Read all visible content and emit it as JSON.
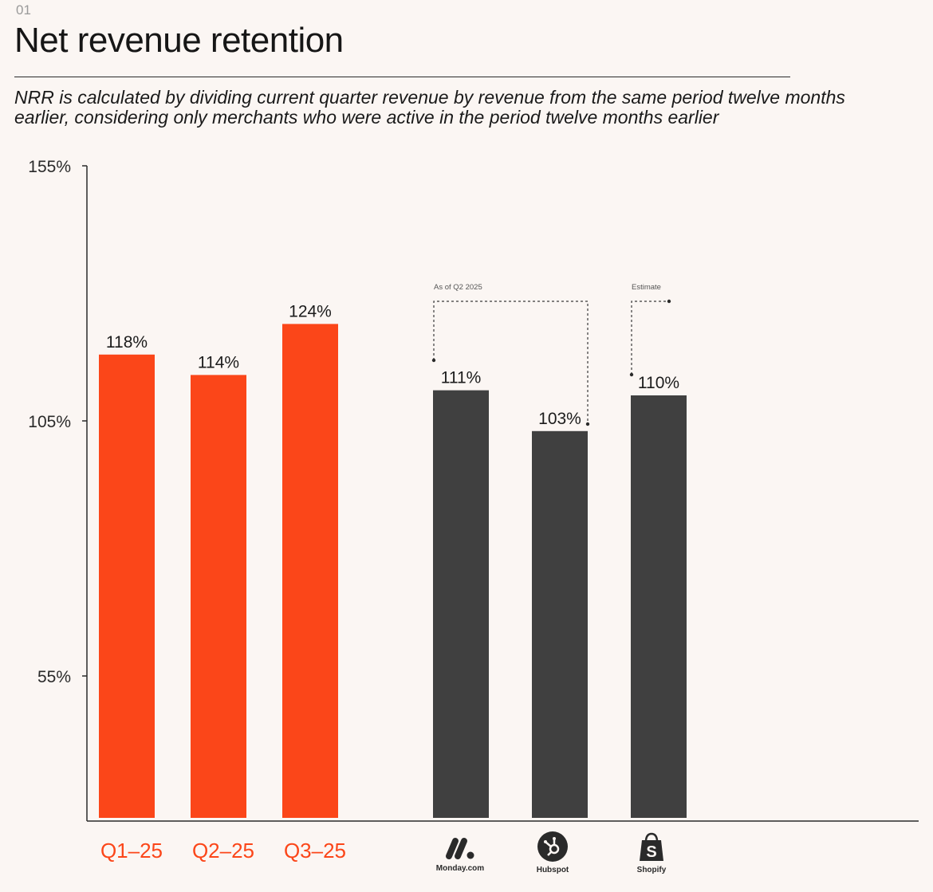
{
  "header": {
    "section_number": "01",
    "title": "Net revenue retention",
    "subtitle": "NRR is calculated by dividing current quarter revenue by revenue from the same period twelve months earlier, considering only merchants who were active in the period twelve months earlier"
  },
  "chart_data": {
    "type": "bar",
    "title": "Net revenue retention",
    "xlabel": "",
    "ylabel": "",
    "yticks": [
      "155%",
      "105%",
      "55%"
    ],
    "ytick_values": [
      155,
      105,
      55
    ],
    "ylim": [
      10,
      155
    ],
    "categories": [
      "Q1–25",
      "Q2–25",
      "Q3–25",
      "Monday.com",
      "Hubspot",
      "Shopify"
    ],
    "values": [
      118,
      114,
      124,
      111,
      103,
      110
    ],
    "value_labels": [
      "118%",
      "114%",
      "124%",
      "111%",
      "103%",
      "110%"
    ],
    "bar_colors": [
      "#fb4619",
      "#fb4619",
      "#fb4619",
      "#404040",
      "#404040",
      "#404040"
    ],
    "annotations": [
      {
        "text": "As of Q2 2025",
        "applies_to": [
          "Monday.com",
          "Hubspot"
        ]
      },
      {
        "text": "Estimate",
        "applies_to": [
          "Shopify"
        ]
      }
    ],
    "grid": false,
    "legend": "none"
  },
  "brands": [
    {
      "label": "Monday.com",
      "icon": "monday-logo-icon"
    },
    {
      "label": "Hubspot",
      "icon": "hubspot-logo-icon"
    },
    {
      "label": "Shopify",
      "icon": "shopify-logo-icon"
    }
  ],
  "colors": {
    "accent": "#fb4619",
    "peer": "#404040",
    "background": "#fbf6f3"
  }
}
